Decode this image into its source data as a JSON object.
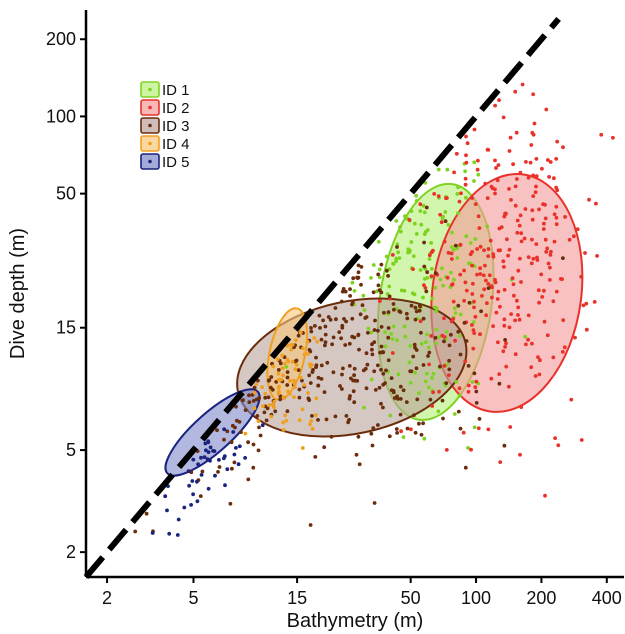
{
  "chart_data": {
    "type": "scatter",
    "title": "",
    "xlabel": "Bathymetry (m)",
    "ylabel": "Dive depth (m)",
    "x_scale": "log",
    "y_scale": "log",
    "xlim": [
      1.6,
      480
    ],
    "ylim": [
      1.6,
      260
    ],
    "x_ticks": [
      2,
      5,
      15,
      50,
      100,
      200,
      400
    ],
    "y_ticks": [
      2,
      5,
      15,
      50,
      100,
      200
    ],
    "x_tick_labels": [
      "2",
      "5",
      "15",
      "50",
      "100",
      "200",
      "400"
    ],
    "y_tick_labels": [
      "2",
      "5",
      "15",
      "50",
      "100",
      "200"
    ],
    "grid": false,
    "legend_position": "top-left",
    "reference_line": {
      "style": "dashed",
      "color": "#000000",
      "description": "1:1 line",
      "from": [
        1.6,
        1.6
      ],
      "to": [
        240,
        240
      ]
    },
    "series": [
      {
        "name": "ID 1",
        "color": "#7ed321",
        "fill": "#b6f07a",
        "center": [
          60,
          23
        ],
        "spread": [
          1.45,
          2.0
        ],
        "count": 170,
        "ellipse": {
          "center_x": 65,
          "center_y": 15.5,
          "x_range": [
            36,
            118
          ],
          "y_range": [
            6.5,
            55
          ]
        }
      },
      {
        "name": "ID 2",
        "color": "#e8322a",
        "fill": "#f59a9a",
        "center": [
          135,
          28
        ],
        "spread": [
          1.6,
          2.1
        ],
        "count": 300,
        "ellipse": {
          "center_x": 140,
          "center_y": 20,
          "x_range": [
            63,
            305
          ],
          "y_range": [
            7,
            60
          ]
        }
      },
      {
        "name": "ID 3",
        "color": "#6b2d0c",
        "fill": "#b9a19a",
        "center": [
          25,
          12
        ],
        "spread": [
          2.1,
          1.7
        ],
        "count": 320,
        "ellipse": {
          "center_x": 27,
          "center_y": 10.5,
          "x_range": [
            7.8,
            92
          ],
          "y_range": [
            5.8,
            19
          ]
        }
      },
      {
        "name": "ID 4",
        "color": "#f0a020",
        "fill": "#f9c77a",
        "center": [
          14,
          12
        ],
        "spread": [
          1.2,
          1.4
        ],
        "count": 70,
        "ellipse": {
          "center_x": 13.5,
          "center_y": 11.8,
          "x_range": [
            11.2,
            16.3
          ],
          "y_range": [
            7.8,
            18
          ]
        }
      },
      {
        "name": "ID 5",
        "color": "#1a237e",
        "fill": "#7f88c9",
        "center": [
          5.8,
          5.8
        ],
        "spread": [
          1.3,
          1.3
        ],
        "count": 45,
        "ellipse": {
          "center_x": 6,
          "center_y": 5.5,
          "x_range": [
            3.9,
            9.6
          ],
          "y_range": [
            3.9,
            8.8
          ]
        }
      }
    ]
  }
}
